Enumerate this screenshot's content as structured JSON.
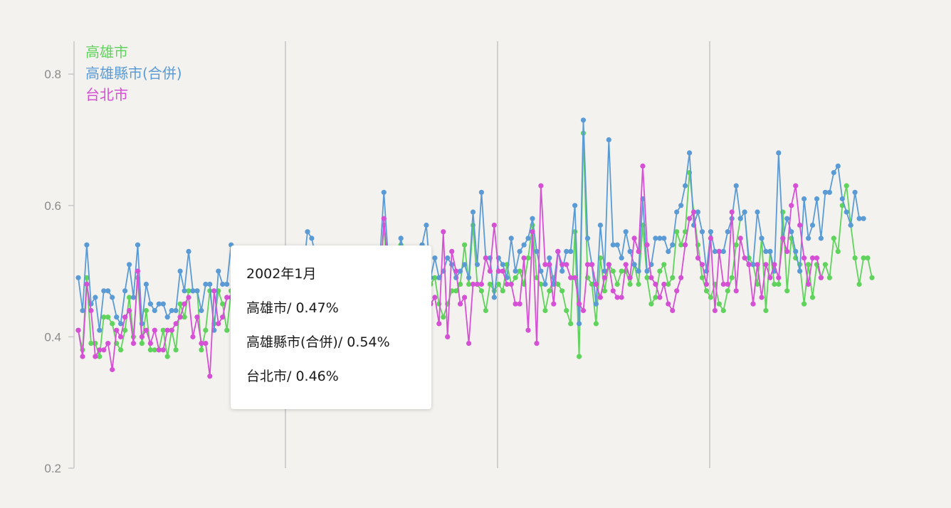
{
  "chart_data": {
    "type": "line",
    "title": "",
    "xlabel": "",
    "ylabel": "",
    "ylim": [
      0.2,
      0.85
    ],
    "yticks": [
      0.2,
      0.4,
      0.6,
      0.8
    ],
    "ytick_labels": [
      "0.2",
      "0.4",
      "0.6",
      "0.8"
    ],
    "grid": "vertical lines only",
    "legend_position": "top-left",
    "x_unit": "month index (monthly series, unlabeled x-axis)",
    "series": [
      {
        "name": "高雄市",
        "color": "#5fd35c",
        "values": [
          0.41,
          0.38,
          0.49,
          0.39,
          0.39,
          0.37,
          0.43,
          0.43,
          0.42,
          0.39,
          0.38,
          0.41,
          0.46,
          0.4,
          0.49,
          0.39,
          0.44,
          0.38,
          0.38,
          0.38,
          0.41,
          0.37,
          0.41,
          0.38,
          0.45,
          0.43,
          0.47,
          0.47,
          0.47,
          0.38,
          0.41,
          0.47,
          0.42,
          0.47,
          0.45,
          0.41,
          0.47,
          0.47,
          0.46,
          0.45,
          0.44,
          0.44,
          0.45,
          0.46,
          0.47,
          0.48,
          0.46,
          0.44,
          0.45,
          0.46,
          0.47,
          0.48,
          0.47,
          0.46,
          0.47,
          0.48,
          0.47,
          0.47,
          0.46,
          0.47,
          0.48,
          0.46,
          0.47,
          0.48,
          0.47,
          0.47,
          0.48,
          0.47,
          0.46,
          0.47,
          0.48,
          0.47,
          0.57,
          0.48,
          0.49,
          0.46,
          0.54,
          0.46,
          0.48,
          0.49,
          0.51,
          0.54,
          0.47,
          0.48,
          0.49,
          0.45,
          0.43,
          0.45,
          0.47,
          0.47,
          0.48,
          0.54,
          0.48,
          0.57,
          0.48,
          0.47,
          0.44,
          0.48,
          0.47,
          0.48,
          0.47,
          0.51,
          0.48,
          0.49,
          0.5,
          0.48,
          0.52,
          0.57,
          0.49,
          0.48,
          0.44,
          0.47,
          0.49,
          0.48,
          0.47,
          0.44,
          0.42,
          0.56,
          0.37,
          0.71,
          0.49,
          0.48,
          0.42,
          0.52,
          0.47,
          0.51,
          0.5,
          0.48,
          0.5,
          0.5,
          0.48,
          0.51,
          0.48,
          0.57,
          0.49,
          0.45,
          0.46,
          0.5,
          0.51,
          0.48,
          0.49,
          0.56,
          0.54,
          0.56,
          0.65,
          0.59,
          0.54,
          0.49,
          0.47,
          0.46,
          0.48,
          0.45,
          0.44,
          0.47,
          0.49,
          0.54,
          0.58,
          0.59,
          0.52,
          0.51,
          0.48,
          0.55,
          0.44,
          0.53,
          0.48,
          0.48,
          0.59,
          0.47,
          0.55,
          0.52,
          0.51,
          0.45,
          0.51,
          0.46,
          0.51,
          0.49,
          0.51,
          0.49,
          0.55,
          0.53,
          0.6,
          0.63,
          0.57,
          0.52,
          0.48,
          0.52,
          0.52,
          0.49
        ]
      },
      {
        "name": "高雄縣市(合併)",
        "color": "#5b9bd5",
        "values": [
          0.49,
          0.44,
          0.54,
          0.45,
          0.46,
          0.41,
          0.47,
          0.47,
          0.46,
          0.43,
          0.42,
          0.47,
          0.51,
          0.46,
          0.54,
          0.42,
          0.48,
          0.45,
          0.44,
          0.45,
          0.45,
          0.43,
          0.44,
          0.44,
          0.5,
          0.47,
          0.53,
          0.47,
          0.47,
          0.44,
          0.48,
          0.48,
          0.41,
          0.5,
          0.48,
          0.48,
          0.54,
          0.5,
          0.49,
          0.48,
          0.48,
          0.48,
          0.49,
          0.5,
          0.51,
          0.52,
          0.5,
          0.48,
          0.49,
          0.5,
          0.51,
          0.52,
          0.51,
          0.5,
          0.56,
          0.55,
          0.52,
          0.51,
          0.52,
          0.51,
          0.52,
          0.52,
          0.51,
          0.52,
          0.51,
          0.51,
          0.52,
          0.51,
          0.51,
          0.52,
          0.51,
          0.51,
          0.62,
          0.52,
          0.53,
          0.5,
          0.55,
          0.51,
          0.52,
          0.49,
          0.51,
          0.54,
          0.57,
          0.49,
          0.52,
          0.49,
          0.5,
          0.52,
          0.51,
          0.49,
          0.5,
          0.51,
          0.49,
          0.59,
          0.51,
          0.62,
          0.52,
          0.52,
          0.46,
          0.52,
          0.51,
          0.49,
          0.55,
          0.5,
          0.53,
          0.54,
          0.55,
          0.58,
          0.53,
          0.5,
          0.48,
          0.52,
          0.48,
          0.53,
          0.5,
          0.53,
          0.53,
          0.6,
          0.42,
          0.73,
          0.55,
          0.51,
          0.45,
          0.57,
          0.5,
          0.7,
          0.54,
          0.54,
          0.52,
          0.56,
          0.53,
          0.51,
          0.5,
          0.61,
          0.5,
          0.51,
          0.55,
          0.55,
          0.55,
          0.53,
          0.54,
          0.59,
          0.6,
          0.63,
          0.68,
          0.57,
          0.59,
          0.56,
          0.5,
          0.56,
          0.53,
          0.53,
          0.53,
          0.56,
          0.58,
          0.63,
          0.58,
          0.59,
          0.51,
          0.51,
          0.59,
          0.55,
          0.53,
          0.53,
          0.5,
          0.68,
          0.55,
          0.58,
          0.56,
          0.53,
          0.5,
          0.61,
          0.55,
          0.57,
          0.61,
          0.55,
          0.62,
          0.62,
          0.65,
          0.66,
          0.61,
          0.59,
          0.57,
          0.62,
          0.58,
          0.58
        ]
      },
      {
        "name": "台北市",
        "color": "#d550d5",
        "values": [
          0.41,
          0.37,
          0.48,
          0.44,
          0.37,
          0.38,
          0.38,
          0.39,
          0.35,
          0.41,
          0.4,
          0.43,
          0.44,
          0.39,
          0.5,
          0.4,
          0.41,
          0.39,
          0.41,
          0.38,
          0.38,
          0.41,
          0.41,
          0.42,
          0.43,
          0.45,
          0.46,
          0.4,
          0.43,
          0.39,
          0.39,
          0.34,
          0.47,
          0.42,
          0.43,
          0.46,
          0.46,
          0.45,
          0.44,
          0.43,
          0.43,
          0.44,
          0.45,
          0.46,
          0.46,
          0.47,
          0.46,
          0.43,
          0.44,
          0.45,
          0.46,
          0.47,
          0.46,
          0.45,
          0.46,
          0.47,
          0.46,
          0.46,
          0.45,
          0.46,
          0.47,
          0.45,
          0.46,
          0.47,
          0.46,
          0.46,
          0.47,
          0.46,
          0.45,
          0.46,
          0.47,
          0.46,
          0.58,
          0.5,
          0.44,
          0.47,
          0.52,
          0.42,
          0.45,
          0.51,
          0.43,
          0.43,
          0.39,
          0.45,
          0.46,
          0.42,
          0.56,
          0.4,
          0.53,
          0.5,
          0.45,
          0.46,
          0.39,
          0.48,
          0.48,
          0.48,
          0.52,
          0.5,
          0.57,
          0.5,
          0.5,
          0.48,
          0.48,
          0.45,
          0.45,
          0.52,
          0.41,
          0.56,
          0.39,
          0.63,
          0.51,
          0.51,
          0.45,
          0.53,
          0.51,
          0.51,
          0.49,
          0.49,
          0.45,
          0.44,
          0.51,
          0.51,
          0.48,
          0.46,
          0.49,
          0.51,
          0.47,
          0.46,
          0.46,
          0.51,
          0.49,
          0.55,
          0.53,
          0.66,
          0.54,
          0.49,
          0.48,
          0.46,
          0.48,
          0.45,
          0.44,
          0.47,
          0.49,
          0.54,
          0.58,
          0.59,
          0.52,
          0.51,
          0.48,
          0.55,
          0.44,
          0.53,
          0.48,
          0.48,
          0.59,
          0.47,
          0.55,
          0.52,
          0.51,
          0.45,
          0.51,
          0.46,
          0.51,
          0.49,
          0.51,
          0.49,
          0.55,
          0.53,
          0.6,
          0.63,
          0.57,
          0.52,
          0.48,
          0.52,
          0.52,
          0.49
        ]
      }
    ],
    "tooltip": {
      "period": "2002年1月",
      "rows": [
        {
          "label": "高雄市/ 0.47%"
        },
        {
          "label": "高雄縣市(合併)/ 0.54%"
        },
        {
          "label": "台北市/ 0.46%"
        }
      ]
    }
  }
}
